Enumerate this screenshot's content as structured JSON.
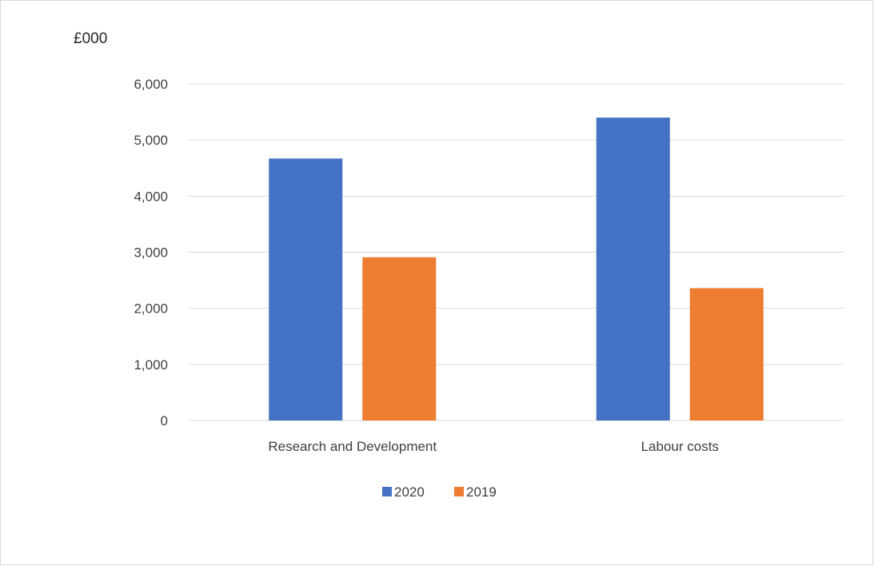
{
  "chart_data": {
    "type": "bar",
    "unit_label": "£000",
    "categories": [
      "Research and Development",
      "Labour costs"
    ],
    "series": [
      {
        "name": "2020",
        "values": [
          4670,
          5400
        ],
        "color": "#4472C4"
      },
      {
        "name": "2019",
        "values": [
          2910,
          2360
        ],
        "color": "#ED7D31"
      }
    ],
    "ylim": [
      0,
      6000
    ],
    "yticks": [
      0,
      1000,
      2000,
      3000,
      4000,
      5000,
      6000
    ],
    "ytick_labels": [
      "0",
      "1,000",
      "2,000",
      "3,000",
      "4,000",
      "5,000",
      "6,000"
    ],
    "grid": true,
    "legend_position": "bottom"
  }
}
